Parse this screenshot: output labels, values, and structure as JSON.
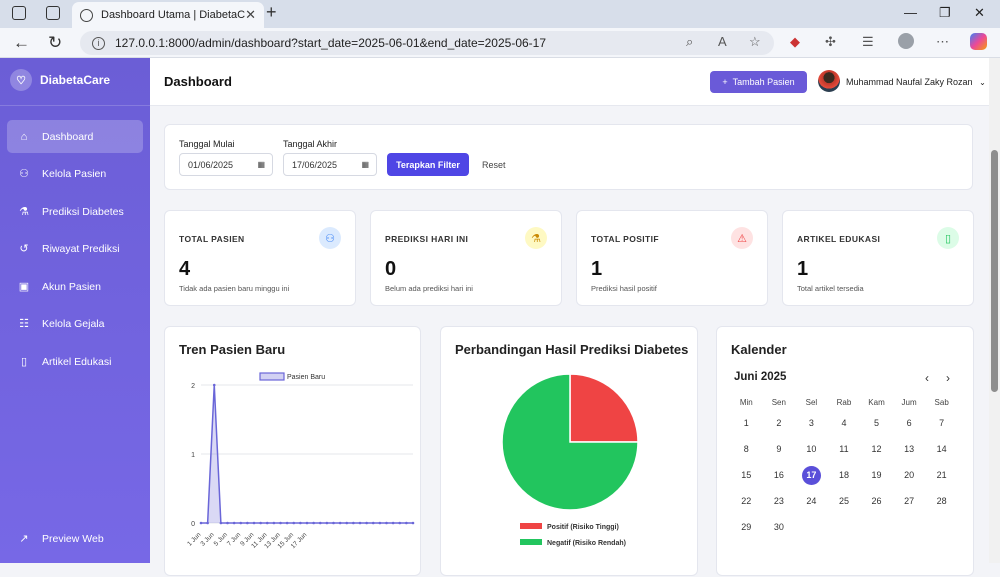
{
  "browser": {
    "tab_title": "Dashboard Utama | DiabetaCare",
    "url": "127.0.0.1:8000/admin/dashboard?start_date=2025-06-01&end_date=2025-06-17"
  },
  "sidebar": {
    "brand": "DiabetaCare",
    "items": [
      {
        "label": "Dashboard",
        "icon": "home-icon"
      },
      {
        "label": "Kelola Pasien",
        "icon": "users-icon"
      },
      {
        "label": "Prediksi Diabetes",
        "icon": "flask-icon"
      },
      {
        "label": "Riwayat Prediksi",
        "icon": "history-icon"
      },
      {
        "label": "Akun Pasien",
        "icon": "id-card-icon"
      },
      {
        "label": "Kelola Gejala",
        "icon": "list-icon"
      },
      {
        "label": "Artikel Edukasi",
        "icon": "book-icon"
      }
    ],
    "preview": "Preview Web"
  },
  "header": {
    "title": "Dashboard",
    "add_button": "Tambah Pasien",
    "user_name": "Muhammad Naufal Zaky Rozan"
  },
  "filter": {
    "start_label": "Tanggal Mulai",
    "start_value": "01/06/2025",
    "end_label": "Tanggal Akhir",
    "end_value": "17/06/2025",
    "apply": "Terapkan Filter",
    "reset": "Reset"
  },
  "stats": [
    {
      "label": "TOTAL PASIEN",
      "value": "4",
      "sub": "Tidak ada pasien baru minggu ini",
      "icon": "users-icon",
      "color": "#3b82f6"
    },
    {
      "label": "PREDIKSI HARI INI",
      "value": "0",
      "sub": "Belum ada prediksi hari ini",
      "icon": "flask-icon",
      "color": "#ca8a04"
    },
    {
      "label": "TOTAL POSITIF",
      "value": "1",
      "sub": "Prediksi hasil positif",
      "icon": "warning-icon",
      "color": "#ef4444"
    },
    {
      "label": "ARTIKEL EDUKASI",
      "value": "1",
      "sub": "Total artikel tersedia",
      "icon": "book-icon",
      "color": "#22c55e"
    }
  ],
  "trend_title": "Tren Pasien Baru",
  "pie_title": "Perbandingan Hasil Prediksi Diabetes",
  "calendar": {
    "title": "Kalender",
    "month": "Juni 2025",
    "days": [
      "Min",
      "Sen",
      "Sel",
      "Rab",
      "Kam",
      "Jum",
      "Sab"
    ],
    "weeks": [
      [
        "1",
        "2",
        "3",
        "4",
        "5",
        "6",
        "7"
      ],
      [
        "8",
        "9",
        "10",
        "11",
        "12",
        "13",
        "14"
      ],
      [
        "15",
        "16",
        "17",
        "18",
        "19",
        "20",
        "21"
      ],
      [
        "22",
        "23",
        "24",
        "25",
        "26",
        "27",
        "28"
      ],
      [
        "29",
        "30",
        "",
        "",
        "",
        "",
        ""
      ]
    ],
    "today": "17"
  },
  "chart_data": [
    {
      "type": "area",
      "title": "Tren Pasien Baru",
      "series": [
        {
          "name": "Pasien Baru",
          "values": [
            0,
            0,
            2,
            0,
            0,
            0,
            0,
            0,
            0,
            0,
            0,
            0,
            0,
            0,
            0,
            0,
            0,
            0,
            0,
            0,
            0,
            0,
            0,
            0,
            0,
            0,
            0,
            0,
            0,
            0,
            0,
            0,
            0
          ]
        }
      ],
      "x_tick_labels": [
        "1 Jun",
        "3 Jun",
        "5 Jun",
        "7 Jun",
        "9 Jun",
        "11 Jun",
        "13 Jun",
        "15 Jun",
        "17 Jun"
      ],
      "y_ticks": [
        "0",
        "1",
        "2"
      ],
      "ylim": [
        0,
        2
      ],
      "color": "#6a66d8",
      "grid": true,
      "legend": "top"
    },
    {
      "type": "pie",
      "title": "Perbandingan Hasil Prediksi Diabetes",
      "slices": [
        {
          "label": "Positif (Risiko Tinggi)",
          "value": 1,
          "color": "#ef4444"
        },
        {
          "label": "Negatif (Risiko Rendah)",
          "value": 3,
          "color": "#22c55e"
        }
      ],
      "legend": "bottom"
    }
  ]
}
